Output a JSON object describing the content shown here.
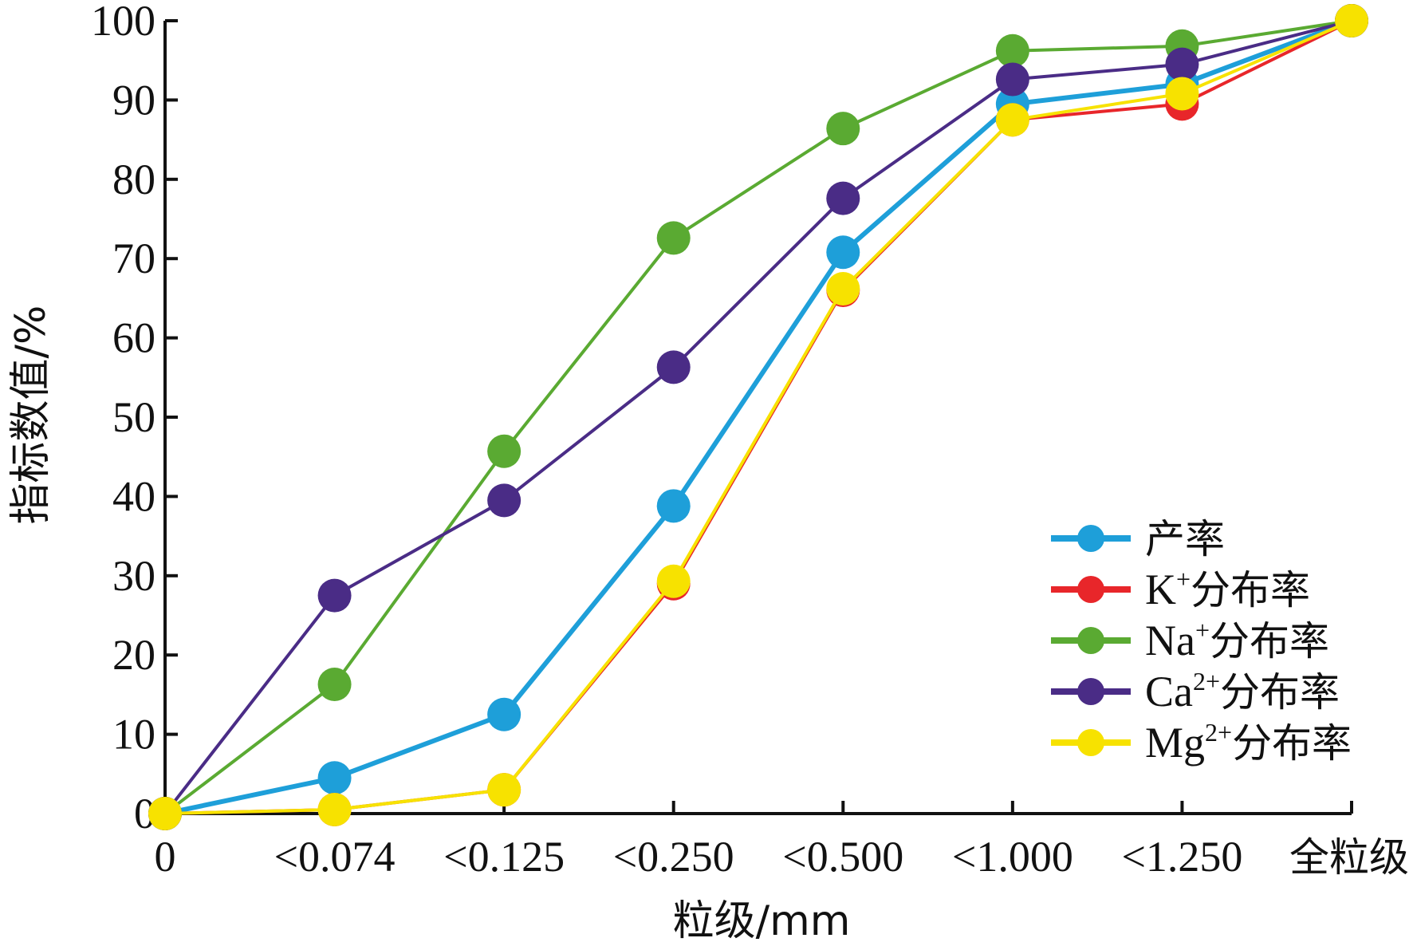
{
  "chart_data": {
    "type": "line",
    "categories": [
      "0",
      "<0.074",
      "<0.125",
      "<0.250",
      "<0.500",
      "<1.000",
      "<1.250",
      "全粒级"
    ],
    "xlabel": "粒级/mm",
    "ylabel": "指标数值/%",
    "ylim": [
      0,
      100
    ],
    "yticks": [
      0,
      10,
      20,
      30,
      40,
      50,
      60,
      70,
      80,
      90,
      100
    ],
    "grid": false,
    "legend_position": "bottom-right",
    "series": [
      {
        "name_main": "产率",
        "ion": "",
        "charge": "",
        "suffix": "",
        "color": "#1E9FD9",
        "values": [
          0,
          4.5,
          12.5,
          38.8,
          70.8,
          89.5,
          92.0,
          100
        ]
      },
      {
        "name_main": "",
        "ion": "K",
        "charge": "+",
        "suffix": "分布率",
        "color": "#E8262A",
        "values": [
          0,
          0.5,
          3.0,
          29.0,
          66.0,
          87.5,
          89.5,
          100
        ]
      },
      {
        "name_main": "",
        "ion": "Na",
        "charge": "+",
        "suffix": "分布率",
        "color": "#5AAA32",
        "values": [
          0,
          16.3,
          45.7,
          72.6,
          86.4,
          96.2,
          96.8,
          100
        ]
      },
      {
        "name_main": "",
        "ion": "Ca",
        "charge": "2+",
        "suffix": "分布率",
        "color": "#4A2C86",
        "values": [
          0,
          27.5,
          39.5,
          56.3,
          77.6,
          92.6,
          94.5,
          100
        ]
      },
      {
        "name_main": "",
        "ion": "Mg",
        "charge": "2+",
        "suffix": "分布率",
        "color": "#F7E200",
        "values": [
          0,
          0.5,
          3.0,
          29.3,
          66.2,
          87.5,
          90.8,
          100
        ]
      }
    ]
  }
}
